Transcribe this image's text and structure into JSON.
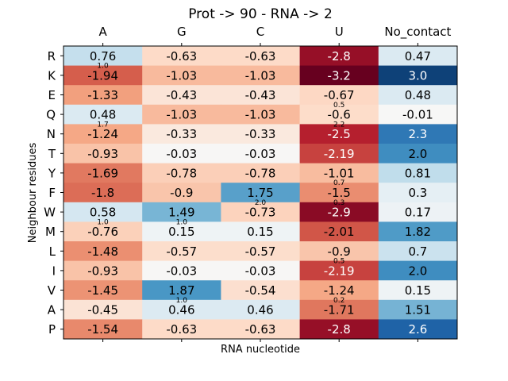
{
  "chart_data": {
    "type": "heatmap",
    "title": "Prot -> 90 - RNA -> 2",
    "xlabel": "RNA nucleotide",
    "ylabel": "Neighbour residues",
    "columns": [
      "A",
      "G",
      "C",
      "U",
      "No_contact"
    ],
    "rows": [
      "R",
      "K",
      "E",
      "Q",
      "N",
      "T",
      "Y",
      "F",
      "W",
      "M",
      "L",
      "I",
      "V",
      "A",
      "P"
    ],
    "values": [
      [
        "0.76",
        "-0.63",
        "-0.63",
        "-2.8",
        "0.47"
      ],
      [
        "-1.94",
        "-1.03",
        "-1.03",
        "-3.2",
        "3.0"
      ],
      [
        "-1.33",
        "-0.43",
        "-0.43",
        "-0.67",
        "0.48"
      ],
      [
        "0.48",
        "-1.03",
        "-1.03",
        "-0.6",
        "-0.01"
      ],
      [
        "-1.24",
        "-0.33",
        "-0.33",
        "-2.5",
        "2.3"
      ],
      [
        "-0.93",
        "-0.03",
        "-0.03",
        "-2.19",
        "2.0"
      ],
      [
        "-1.69",
        "-0.78",
        "-0.78",
        "-1.01",
        "0.81"
      ],
      [
        "-1.8",
        "-0.9",
        "1.75",
        "-1.5",
        "0.3"
      ],
      [
        "0.58",
        "1.49",
        "-0.73",
        "-2.9",
        "0.17"
      ],
      [
        "-0.76",
        "0.15",
        "0.15",
        "-2.01",
        "1.82"
      ],
      [
        "-1.48",
        "-0.57",
        "-0.57",
        "-0.9",
        "0.7"
      ],
      [
        "-0.93",
        "-0.03",
        "-0.03",
        "-2.19",
        "2.0"
      ],
      [
        "-1.45",
        "1.87",
        "-0.54",
        "-1.24",
        "0.15"
      ],
      [
        "-0.45",
        "0.46",
        "0.46",
        "-1.71",
        "1.51"
      ],
      [
        "-1.54",
        "-0.63",
        "-0.63",
        "-2.8",
        "2.6"
      ]
    ],
    "annotations": [
      {
        "row": 0,
        "col": 0,
        "text": "1.0"
      },
      {
        "row": 2,
        "col": 3,
        "text": "0.5"
      },
      {
        "row": 3,
        "col": 0,
        "text": "1.7"
      },
      {
        "row": 3,
        "col": 3,
        "text": "2.2"
      },
      {
        "row": 6,
        "col": 3,
        "text": "0.7"
      },
      {
        "row": 7,
        "col": 2,
        "text": "2.0"
      },
      {
        "row": 7,
        "col": 3,
        "text": "0.3"
      },
      {
        "row": 8,
        "col": 0,
        "text": "1.0"
      },
      {
        "row": 8,
        "col": 1,
        "text": "1.0"
      },
      {
        "row": 10,
        "col": 3,
        "text": "0.5"
      },
      {
        "row": 12,
        "col": 1,
        "text": "1.0"
      },
      {
        "row": 12,
        "col": 3,
        "text": "0.2"
      }
    ],
    "color_range": [
      -3.2,
      3.2
    ],
    "colormap": "RdBu"
  }
}
